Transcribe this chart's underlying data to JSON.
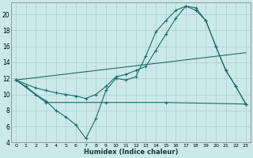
{
  "xlabel": "Humidex (Indice chaleur)",
  "bg_color": "#cce9e9",
  "grid_color": "#aacccc",
  "line_color": "#1a6b6b",
  "xlim": [
    -0.5,
    23.5
  ],
  "ylim": [
    4,
    21.5
  ],
  "yticks": [
    4,
    6,
    8,
    10,
    12,
    14,
    16,
    18,
    20
  ],
  "xticks": [
    0,
    1,
    2,
    3,
    4,
    5,
    6,
    7,
    8,
    9,
    10,
    11,
    12,
    13,
    14,
    15,
    16,
    17,
    18,
    19,
    20,
    21,
    22,
    23
  ],
  "line1_x": [
    0,
    1,
    2,
    3,
    4,
    5,
    6,
    7,
    8,
    9,
    10,
    11,
    12,
    13,
    14,
    15,
    16,
    17,
    18,
    19,
    20,
    21,
    22,
    23
  ],
  "line1_y": [
    11.8,
    11.0,
    10.0,
    9.2,
    8.0,
    7.2,
    6.2,
    4.5,
    7.0,
    10.5,
    12.0,
    11.8,
    12.2,
    14.8,
    17.8,
    19.2,
    20.5,
    21.0,
    20.8,
    19.2,
    16.0,
    13.0,
    11.0,
    8.8
  ],
  "line2_x": [
    0,
    2,
    3,
    4,
    5,
    6,
    7,
    8,
    9,
    10,
    11,
    12,
    13,
    14,
    15,
    16,
    17,
    18,
    19,
    20,
    21,
    22,
    23
  ],
  "line2_y": [
    11.8,
    10.8,
    10.5,
    10.2,
    10.0,
    9.8,
    9.5,
    10.0,
    11.0,
    12.2,
    12.5,
    13.0,
    13.5,
    15.5,
    17.5,
    19.5,
    21.0,
    20.5,
    19.2,
    16.0,
    13.0,
    11.0,
    8.8
  ],
  "line3_x": [
    0,
    23
  ],
  "line3_y": [
    11.8,
    15.2
  ],
  "line4_x": [
    0,
    3,
    9,
    15,
    23
  ],
  "line4_y": [
    11.8,
    9.0,
    9.0,
    9.0,
    8.8
  ]
}
